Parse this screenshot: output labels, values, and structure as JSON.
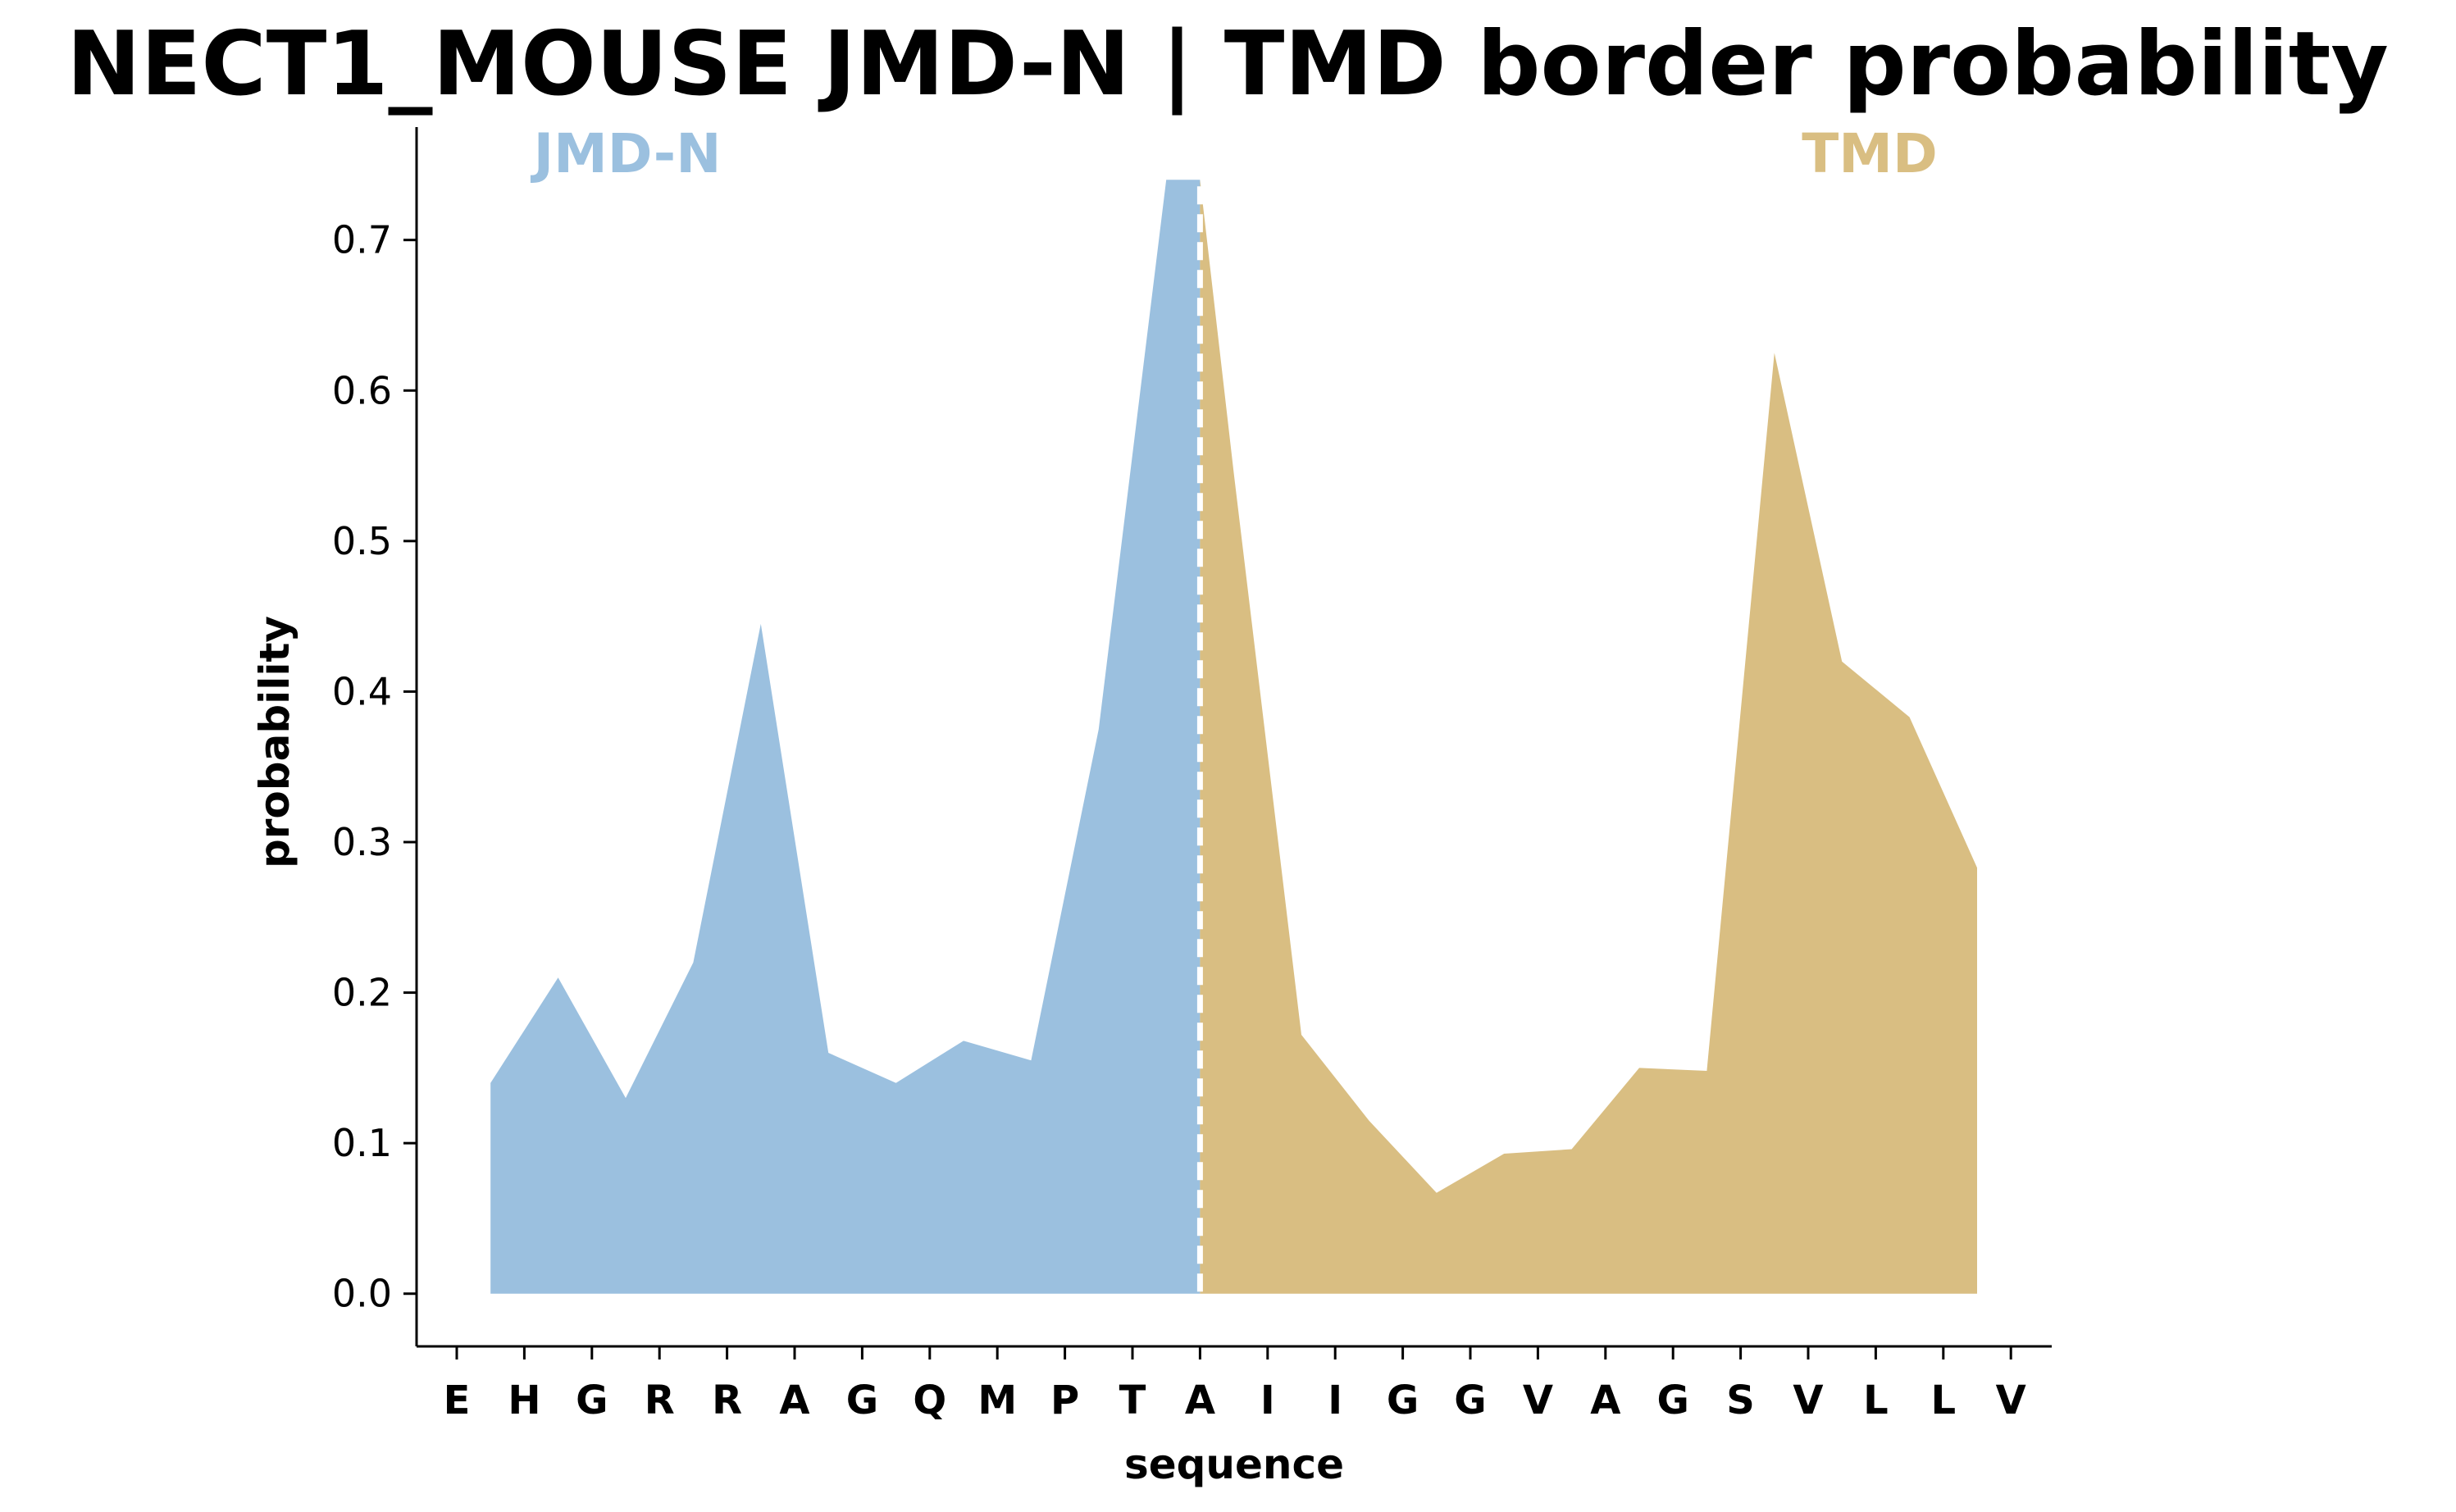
{
  "chart_data": {
    "type": "area",
    "title": "NECT1_MOUSE JMD-N | TMD border probability",
    "xlabel": "sequence",
    "ylabel": "probability",
    "ylim": [
      -0.035,
      0.775
    ],
    "yticks": [
      "0.0",
      "0.1",
      "0.2",
      "0.3",
      "0.4",
      "0.5",
      "0.6",
      "0.7"
    ],
    "sequence": [
      "E",
      "H",
      "G",
      "R",
      "R",
      "A",
      "G",
      "Q",
      "M",
      "P",
      "T",
      "A",
      "I",
      "I",
      "G",
      "G",
      "V",
      "A",
      "G",
      "S",
      "V",
      "L",
      "L",
      "V"
    ],
    "x": [
      0.5,
      1.5,
      2.5,
      3.5,
      4.5,
      5.5,
      6.5,
      7.5,
      8.5,
      9.5,
      10.5,
      11.0,
      11.5,
      12.5,
      13.5,
      14.5,
      15.5,
      16.5,
      17.5,
      18.5,
      19.5,
      20.5,
      21.5,
      22.5
    ],
    "y": [
      0.14,
      0.21,
      0.13,
      0.22,
      0.445,
      0.16,
      0.14,
      0.168,
      0.155,
      0.375,
      0.74,
      0.74,
      0.545,
      0.172,
      0.115,
      0.067,
      0.093,
      0.096,
      0.15,
      0.148,
      0.625,
      0.42,
      0.383,
      0.283
    ],
    "border_x": 11.0,
    "series": [
      {
        "name": "JMD-N",
        "color": "#9bc0df",
        "x_range": [
          0.5,
          11.0
        ]
      },
      {
        "name": "TMD",
        "color": "#d9be82",
        "x_range": [
          11.0,
          22.5
        ]
      }
    ],
    "grid": false,
    "legend": "none"
  }
}
